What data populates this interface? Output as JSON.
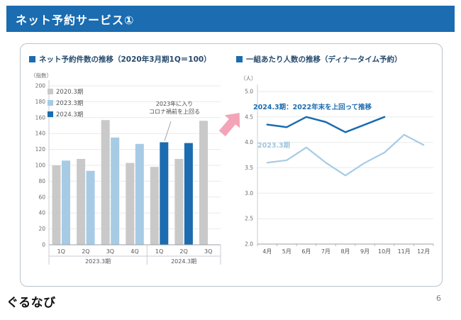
{
  "header": {
    "title": "ネット予約サービス①"
  },
  "footer": {
    "logo": "ぐるなび",
    "page_number": "6"
  },
  "colors": {
    "header_bg": "#1b6cb0",
    "accent_dark_blue": "#1b6cb0",
    "accent_light_blue": "#a7cbe5",
    "baseline_gray": "#c9c9c9",
    "arrow_pink": "#f4a4b8"
  },
  "chart_data": [
    {
      "type": "bar",
      "title": "ネット予約件数の推移（2020年3月期1Q＝100）",
      "ylabel": "（指数）",
      "xlabel": "",
      "ylim": [
        0,
        200
      ],
      "ytick_step": 20,
      "grid": true,
      "legend_position": "top-left",
      "categories": [
        "1Q",
        "2Q",
        "3Q",
        "4Q",
        "1Q",
        "2Q",
        "3Q"
      ],
      "groups": [
        {
          "label": "2023.3期",
          "count": 4
        },
        {
          "label": "2024.3期",
          "count": 3
        }
      ],
      "series": [
        {
          "name": "2020.3期",
          "color": "#c9c9c9",
          "values": [
            100,
            108,
            157,
            103,
            98,
            108,
            156
          ]
        },
        {
          "name": "2023.3期",
          "color": "#a7cbe5",
          "values": [
            106,
            93,
            135,
            127,
            null,
            null,
            null
          ]
        },
        {
          "name": "2024.3期",
          "color": "#1b6cb0",
          "values": [
            null,
            null,
            null,
            null,
            129,
            128,
            null
          ]
        }
      ],
      "annotation": "2023年に入り\nコロナ禍前を上回る"
    },
    {
      "type": "line",
      "title": "一組あたり人数の推移（ディナータイム予約）",
      "ylabel": "（人）",
      "xlabel": "",
      "ylim": [
        2.0,
        5.0
      ],
      "ytick_step": 0.5,
      "grid": true,
      "categories": [
        "4月",
        "5月",
        "6月",
        "7月",
        "8月",
        "9月",
        "10月",
        "11月",
        "12月"
      ],
      "series": [
        {
          "name": "2024.3期",
          "color": "#1b6cb0",
          "values": [
            4.35,
            4.3,
            4.5,
            4.4,
            4.2,
            4.35,
            4.5,
            null,
            null
          ]
        },
        {
          "name": "2023.3期",
          "color": "#a7cbe5",
          "values": [
            3.6,
            3.65,
            3.9,
            3.6,
            3.35,
            3.6,
            3.8,
            4.15,
            3.95
          ]
        }
      ],
      "annotation": "2024.3期：2022年末を上回って推移"
    }
  ]
}
